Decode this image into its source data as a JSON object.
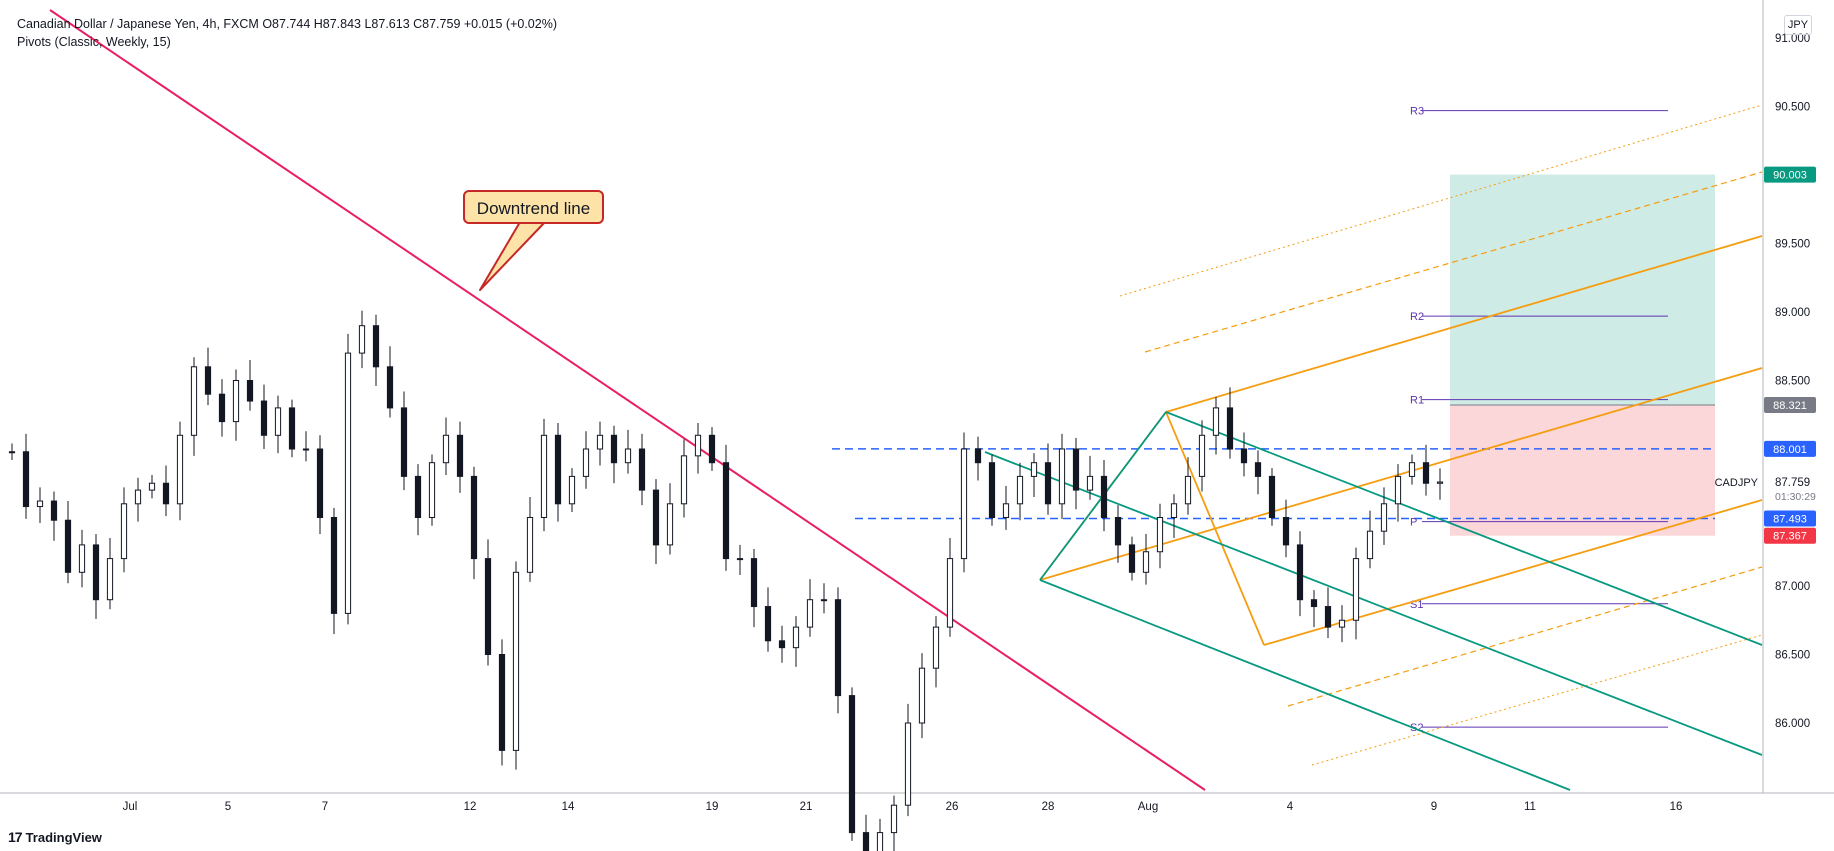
{
  "header": {
    "symbol": "Canadian Dollar / Japanese Yen, 4h, FXCM",
    "ohlc": "O87.744 H87.843 L87.613 C87.759 +0.015 (+0.02%)",
    "indicator": "Pivots (Classic, Weekly, 15)"
  },
  "currency_badge": "JPY",
  "brand": "TradingView",
  "callout": "Downtrend line",
  "chart_data": {
    "type": "candlestick",
    "x_ticks": [
      "Jul",
      "5",
      "7",
      "12",
      "14",
      "19",
      "21",
      "26",
      "28",
      "Aug",
      "4",
      "9",
      "11",
      "16"
    ],
    "y_ticks": [
      "91.000",
      "90.500",
      "90.000",
      "89.500",
      "89.000",
      "88.500",
      "88.000",
      "87.500",
      "87.000",
      "86.500",
      "86.000"
    ],
    "price_labels": [
      {
        "text": "90.003",
        "value": 90.003,
        "color": "#089981"
      },
      {
        "text": "88.321",
        "value": 88.321,
        "color": "#787b86"
      },
      {
        "text": "88.001",
        "value": 88.001,
        "color": "#2962ff"
      },
      {
        "text": "87.493",
        "value": 87.493,
        "color": "#2962ff"
      },
      {
        "text": "87.367",
        "value": 87.367,
        "color": "#f23645"
      }
    ],
    "last": {
      "symbol": "CADJPY",
      "price": "87.759",
      "countdown": "01:30:29"
    },
    "pivots": [
      {
        "name": "R3",
        "value": 90.47
      },
      {
        "name": "R2",
        "value": 88.97
      },
      {
        "name": "R1",
        "value": 88.36
      },
      {
        "name": "P",
        "value": 87.47
      },
      {
        "name": "S1",
        "value": 86.87
      },
      {
        "name": "S2",
        "value": 85.97
      }
    ],
    "range_lines": [
      88.001,
      87.493
    ],
    "position": {
      "target": 90.003,
      "entry": 88.321,
      "stop": 87.367
    },
    "closes": [
      87.98,
      87.58,
      87.62,
      87.48,
      87.1,
      87.3,
      86.9,
      87.2,
      87.6,
      87.7,
      87.75,
      87.6,
      88.1,
      88.6,
      88.4,
      88.2,
      88.5,
      88.35,
      88.1,
      88.3,
      88.0,
      88.0,
      87.5,
      86.8,
      88.7,
      88.9,
      88.6,
      88.3,
      87.8,
      87.5,
      87.9,
      88.1,
      87.8,
      87.2,
      86.5,
      85.8,
      87.1,
      87.5,
      88.1,
      87.6,
      87.8,
      88.0,
      88.1,
      87.9,
      88.0,
      87.7,
      87.3,
      87.6,
      87.95,
      88.1,
      87.9,
      87.2,
      87.2,
      86.85,
      86.6,
      86.55,
      86.7,
      86.9,
      86.9,
      86.2,
      85.2,
      84.9,
      85.2,
      85.4,
      86.0,
      86.4,
      86.7,
      87.2,
      88.0,
      87.9,
      87.5,
      87.6,
      87.8,
      87.9,
      87.6,
      88.0,
      87.7,
      87.8,
      87.5,
      87.3,
      87.1,
      87.25,
      87.5,
      87.6,
      87.8,
      88.1,
      88.3,
      88.0,
      87.9,
      87.8,
      87.5,
      87.3,
      86.9,
      86.85,
      86.7,
      86.75,
      87.2,
      87.4,
      87.6,
      87.8,
      87.9,
      87.75,
      87.759
    ],
    "projections": {
      "candle_count": 103,
      "first_close": 87.98
    }
  }
}
